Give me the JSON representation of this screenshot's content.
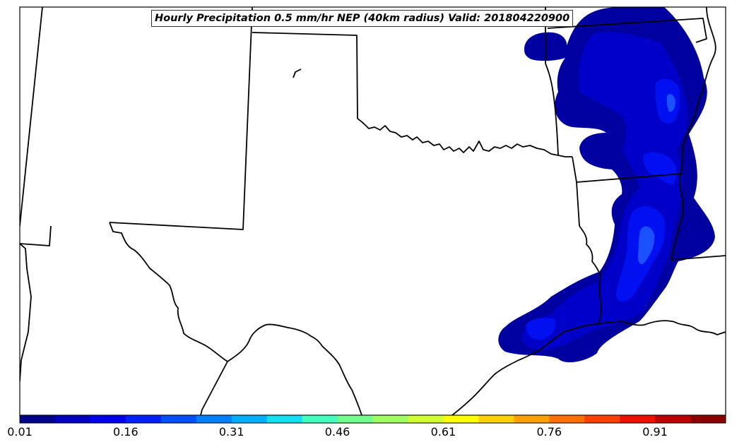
{
  "title": "Hourly Precipitation 0.5 mm/hr NEP (40km radius) Valid: 201804220900",
  "colorbar": {
    "tick_labels": [
      "0.01",
      "0.16",
      "0.31",
      "0.46",
      "0.61",
      "0.76",
      "0.91"
    ],
    "colors": [
      "#00008f",
      "#0000bf",
      "#0000ef",
      "#0020ff",
      "#0050ff",
      "#0080ff",
      "#00b0ff",
      "#10e0ef",
      "#40ffbf",
      "#70ff8f",
      "#a0ff60",
      "#d0ff30",
      "#ffff00",
      "#ffd000",
      "#ffa000",
      "#ff7000",
      "#ff4000",
      "#ef1000",
      "#bf0000",
      "#8f0000"
    ]
  },
  "precip_colors": {
    "darkest": "#0000a0",
    "dark": "#0000c8",
    "medium": "#0010f0",
    "light": "#1a50ff"
  }
}
